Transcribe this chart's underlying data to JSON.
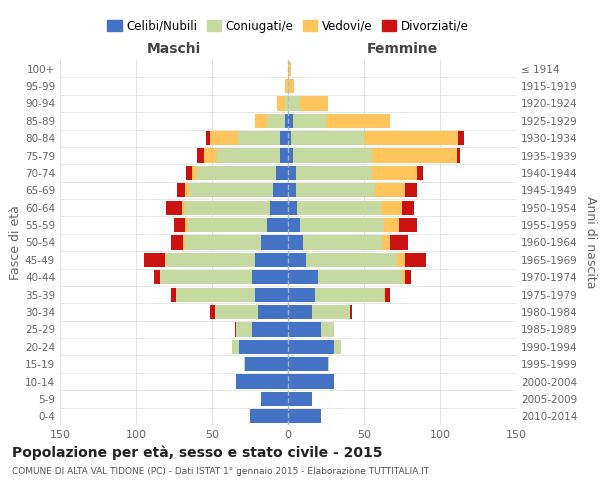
{
  "age_groups": [
    "100+",
    "95-99",
    "90-94",
    "85-89",
    "80-84",
    "75-79",
    "70-74",
    "65-69",
    "60-64",
    "55-59",
    "50-54",
    "45-49",
    "40-44",
    "35-39",
    "30-34",
    "25-29",
    "20-24",
    "15-19",
    "10-14",
    "5-9",
    "0-4"
  ],
  "birth_years": [
    "≤ 1914",
    "1915-1919",
    "1920-1924",
    "1925-1929",
    "1930-1934",
    "1935-1939",
    "1940-1944",
    "1945-1949",
    "1950-1954",
    "1955-1959",
    "1960-1964",
    "1965-1969",
    "1970-1974",
    "1975-1979",
    "1980-1984",
    "1985-1989",
    "1990-1994",
    "1995-1999",
    "2000-2004",
    "2005-2009",
    "2010-2014"
  ],
  "colors": {
    "celibi": "#4472c4",
    "coniugati": "#c6d9a0",
    "vedovi": "#ffc55c",
    "divorziati": "#cc1111"
  },
  "maschi": {
    "celibi": [
      0,
      0,
      0,
      2,
      5,
      5,
      8,
      10,
      12,
      14,
      18,
      22,
      24,
      22,
      20,
      24,
      32,
      28,
      34,
      18,
      25
    ],
    "coniugati": [
      0,
      0,
      2,
      12,
      28,
      42,
      52,
      55,
      56,
      52,
      50,
      58,
      60,
      52,
      28,
      10,
      5,
      1,
      0,
      0,
      0
    ],
    "vedovi": [
      0,
      2,
      5,
      8,
      18,
      8,
      3,
      3,
      2,
      2,
      1,
      1,
      0,
      0,
      0,
      0,
      0,
      0,
      0,
      0,
      0
    ],
    "divorziati": [
      0,
      0,
      0,
      0,
      3,
      5,
      4,
      5,
      10,
      7,
      8,
      14,
      4,
      3,
      3,
      1,
      0,
      0,
      0,
      0,
      0
    ]
  },
  "femmine": {
    "nubili": [
      0,
      0,
      0,
      3,
      2,
      3,
      5,
      5,
      6,
      8,
      10,
      12,
      20,
      18,
      16,
      22,
      30,
      26,
      30,
      16,
      22
    ],
    "coniugate": [
      0,
      0,
      8,
      22,
      48,
      52,
      50,
      52,
      55,
      55,
      52,
      60,
      55,
      45,
      25,
      8,
      5,
      1,
      0,
      0,
      0
    ],
    "vedove": [
      2,
      4,
      18,
      42,
      62,
      56,
      30,
      20,
      14,
      10,
      5,
      5,
      2,
      1,
      0,
      0,
      0,
      0,
      0,
      0,
      0
    ],
    "divorziate": [
      0,
      0,
      0,
      0,
      4,
      2,
      4,
      8,
      8,
      12,
      12,
      14,
      4,
      3,
      1,
      0,
      0,
      0,
      0,
      0,
      0
    ]
  },
  "xlim": 150,
  "title": "Popolazione per età, sesso e stato civile - 2015",
  "subtitle": "COMUNE DI ALTA VAL TIDONE (PC) - Dati ISTAT 1° gennaio 2015 - Elaborazione TUTTITALIA.IT",
  "ylabel_left": "Fasce di età",
  "ylabel_right": "Anni di nascita",
  "xlabel_left": "Maschi",
  "xlabel_right": "Femmine"
}
